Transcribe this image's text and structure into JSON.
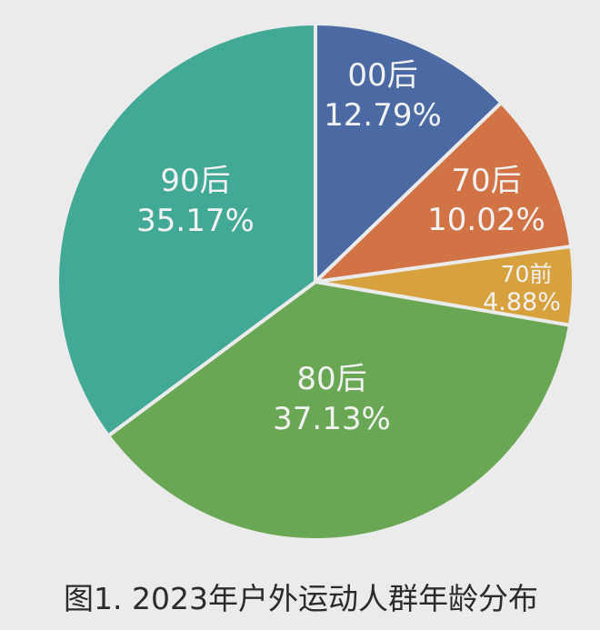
{
  "chart_data": {
    "type": "pie",
    "title": "图1. 2023年户外运动人群年龄分布",
    "start_angle": "12 o'clock",
    "direction": "clockwise",
    "categories": [
      "00后",
      "70后",
      "70前",
      "80后",
      "90后"
    ],
    "values": [
      12.79,
      10.02,
      4.88,
      37.13,
      35.17
    ],
    "unit": "%",
    "labels": [
      "12.79%",
      "10.02%",
      "4.88%",
      "37.13%",
      "35.17%"
    ],
    "colors": [
      "#4b6aa3",
      "#d27346",
      "#d7a23e",
      "#6aa755",
      "#42a996"
    ],
    "legend": "none (labels inside slices)"
  },
  "caption": "图1. 2023年户外运动人群年龄分布",
  "slices": [
    {
      "name": "00后",
      "pct": "12.79%",
      "color": "#4b6aa3"
    },
    {
      "name": "70后",
      "pct": "10.02%",
      "color": "#d27346"
    },
    {
      "name": "70前",
      "pct": "4.88%",
      "color": "#d7a23e"
    },
    {
      "name": "80后",
      "pct": "37.13%",
      "color": "#6aa755"
    },
    {
      "name": "90后",
      "pct": "35.17%",
      "color": "#42a996"
    }
  ]
}
